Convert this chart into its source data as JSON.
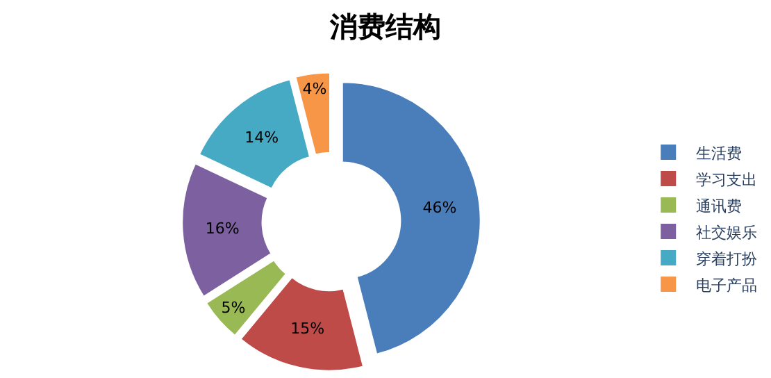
{
  "chart_data": {
    "type": "donut",
    "title": "消费结构",
    "categories": [
      "生活费",
      "学习支出",
      "通讯费",
      "社交娱乐",
      "穿着打扮",
      "电子产品"
    ],
    "values": [
      46,
      15,
      5,
      16,
      14,
      4
    ],
    "value_labels": [
      "46%",
      "15%",
      "5%",
      "16%",
      "14%",
      "4%"
    ],
    "colors": [
      "#4a7ebb",
      "#be4b48",
      "#98b954",
      "#7d60a0",
      "#46aac5",
      "#f79646"
    ],
    "legend": "right"
  }
}
